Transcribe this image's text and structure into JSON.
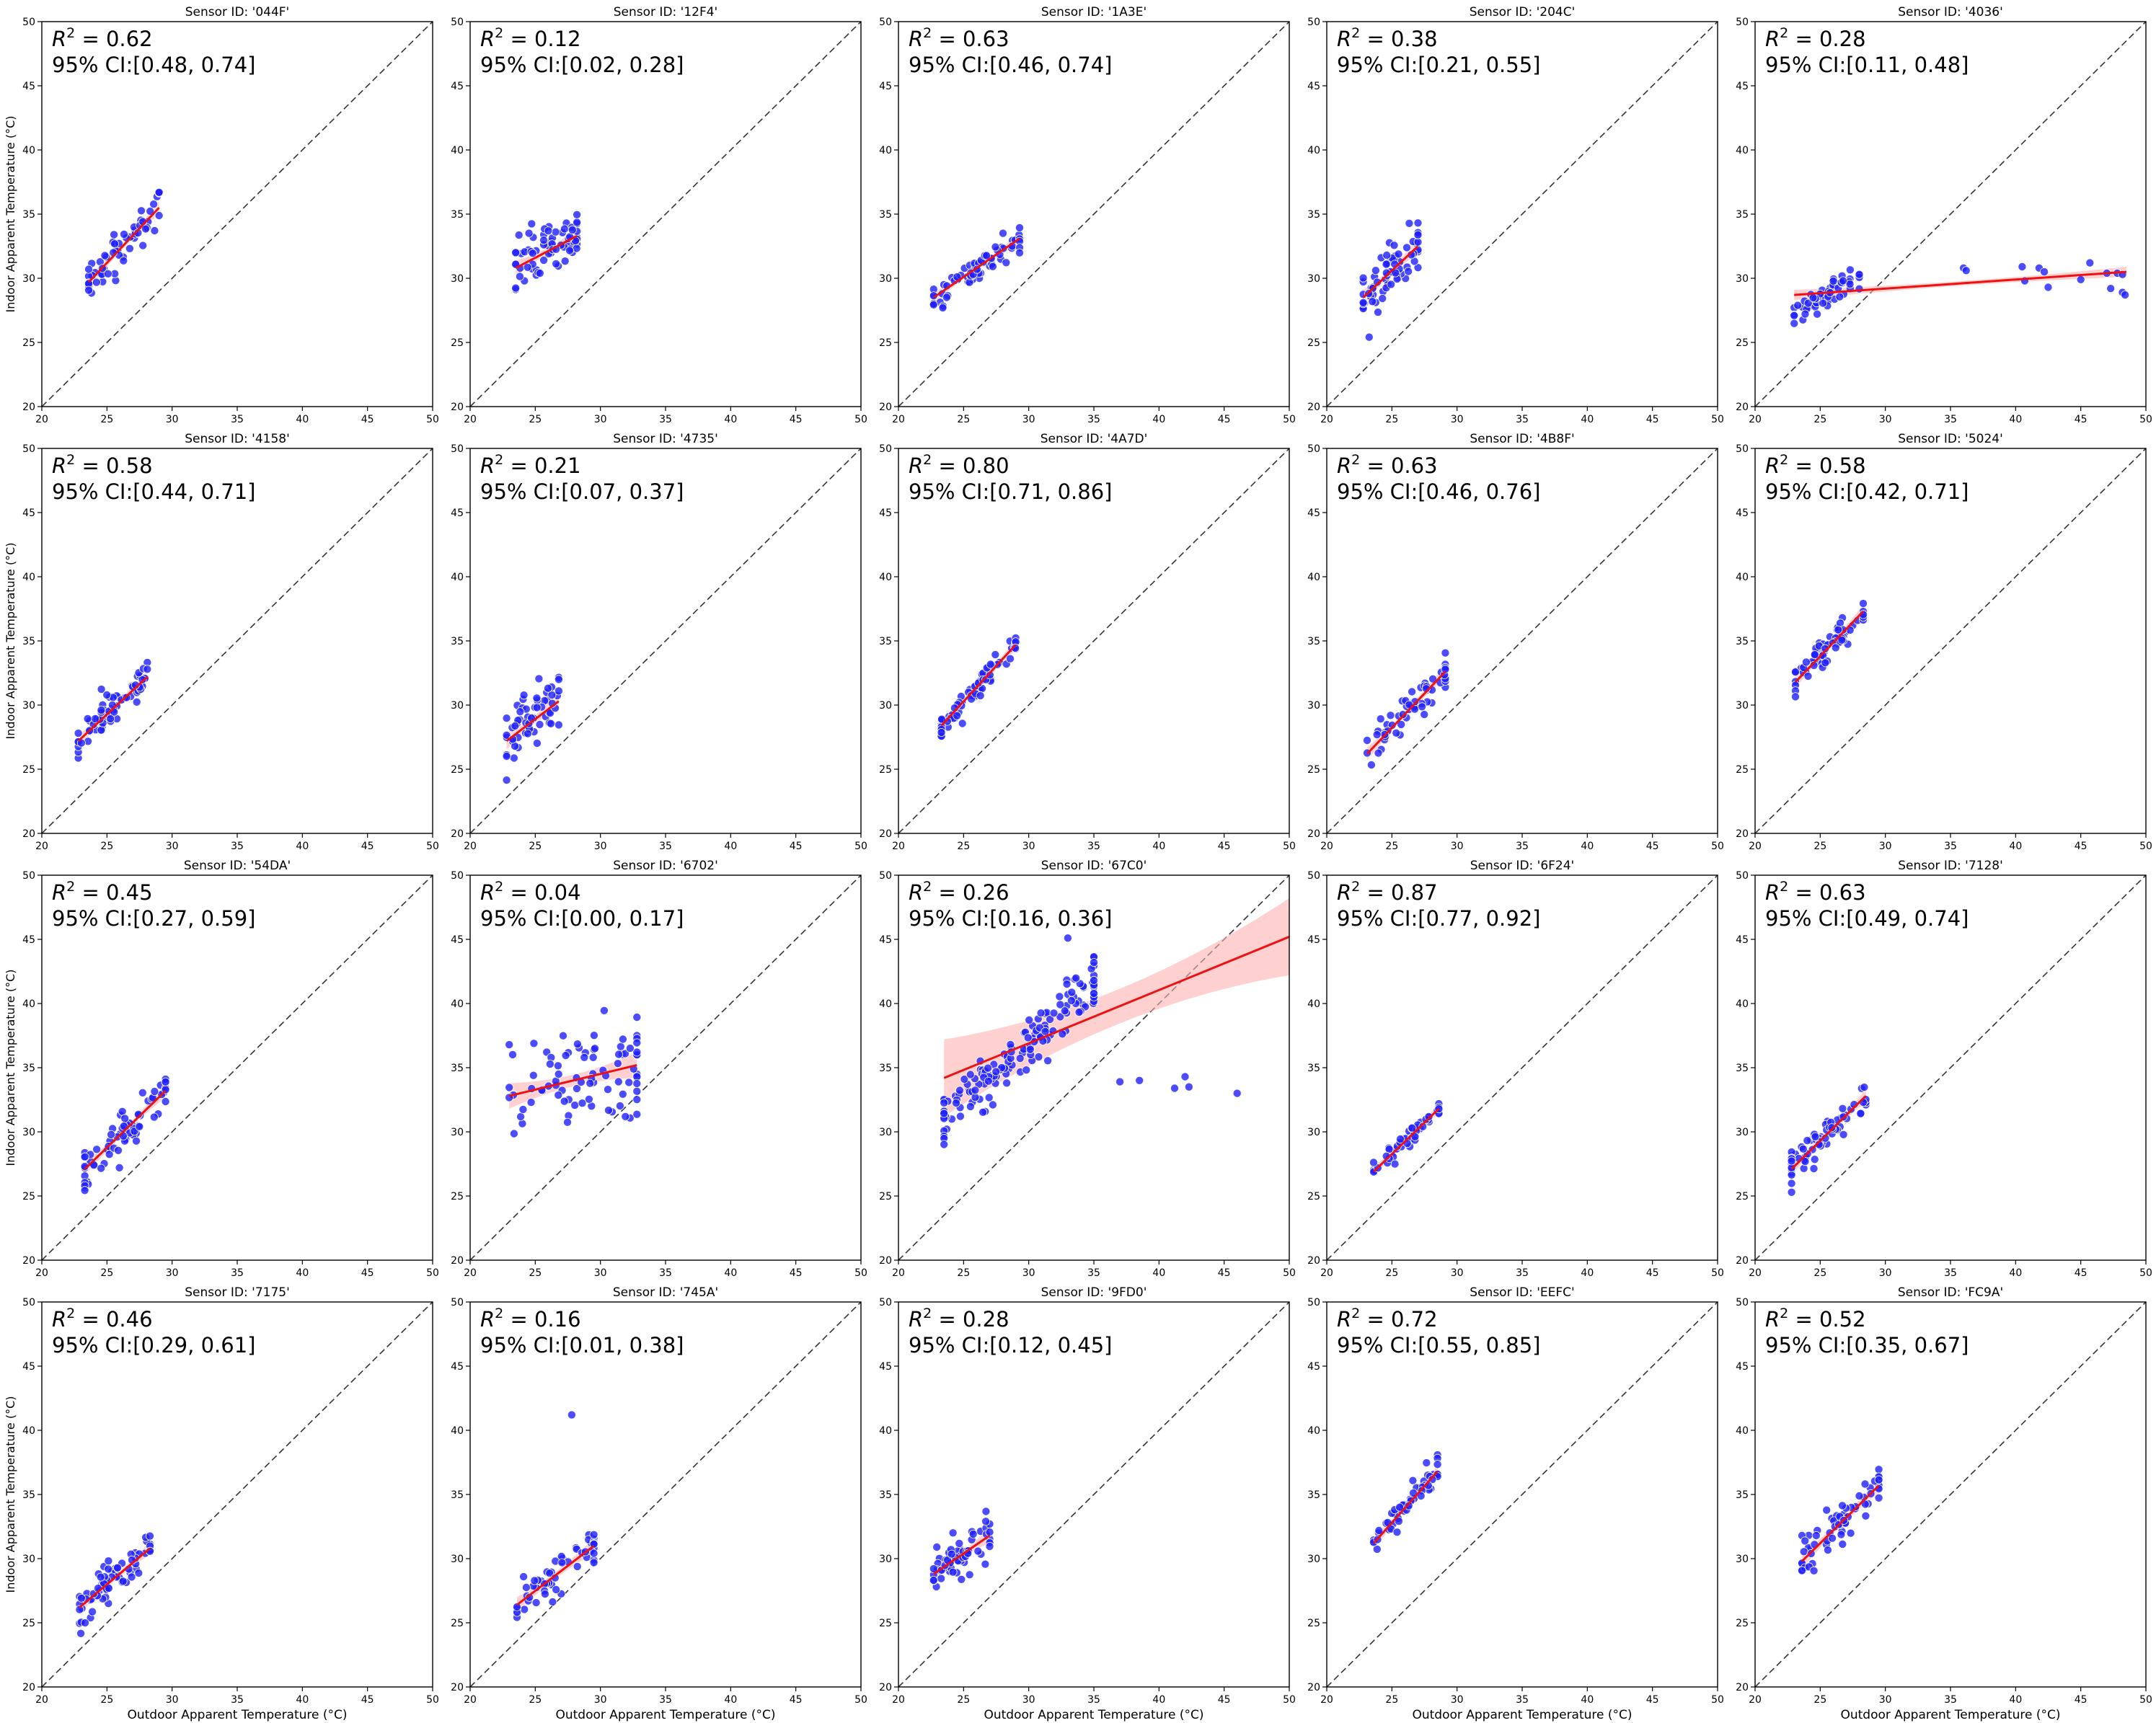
{
  "figure": {
    "xlabel": "Outdoor Apparent Temperature (°C)",
    "ylabel": "Indoor Apparent Temperature (°C)",
    "r2_prefix": "R",
    "r2_sup": "2",
    "ci_prefix": "95% CI:",
    "title_prefix": "Sensor ID: "
  },
  "colors": {
    "points": "#1f1fff",
    "fit_line": "#ee1111",
    "ci_band": "#ffb0b0",
    "identity_line": "#333333"
  },
  "chart_data": [
    {
      "type": "scatter",
      "sensor": "'044F'",
      "title": "Sensor ID: '044F'",
      "r2": "0.62",
      "ci": "[0.48, 0.74]",
      "xlim": [
        20,
        50
      ],
      "ylim": [
        20,
        50
      ],
      "xticks": [
        20,
        25,
        30,
        35,
        40,
        45,
        50
      ],
      "yticks": [
        20,
        25,
        30,
        35,
        40,
        45,
        50
      ],
      "fit": {
        "x": [
          23.6,
          29.0
        ],
        "y": [
          29.7,
          35.5
        ],
        "band": 0.5
      },
      "cluster": {
        "x": [
          23.6,
          29.0
        ],
        "y": [
          29.7,
          35.5
        ],
        "spread": 1.0,
        "n": 60
      }
    },
    {
      "type": "scatter",
      "sensor": "'12F4'",
      "title": "Sensor ID: '12F4'",
      "r2": "0.12",
      "ci": "[0.02, 0.28]",
      "xlim": [
        20,
        50
      ],
      "ylim": [
        20,
        50
      ],
      "xticks": [
        20,
        25,
        30,
        35,
        40,
        45,
        50
      ],
      "yticks": [
        20,
        25,
        30,
        35,
        40,
        45,
        50
      ],
      "fit": {
        "x": [
          23.5,
          28.2
        ],
        "y": [
          30.8,
          33.3
        ],
        "band": 0.6
      },
      "cluster": {
        "x": [
          23.5,
          28.2
        ],
        "y": [
          30.8,
          33.3
        ],
        "spread": 1.4,
        "n": 70
      }
    },
    {
      "type": "scatter",
      "sensor": "'1A3E'",
      "title": "Sensor ID: '1A3E'",
      "r2": "0.63",
      "ci": "[0.46, 0.74]",
      "xlim": [
        20,
        50
      ],
      "ylim": [
        20,
        50
      ],
      "xticks": [
        20,
        25,
        30,
        35,
        40,
        45,
        50
      ],
      "yticks": [
        20,
        25,
        30,
        35,
        40,
        45,
        50
      ],
      "fit": {
        "x": [
          22.7,
          29.3
        ],
        "y": [
          28.5,
          33.1
        ],
        "band": 0.4
      },
      "cluster": {
        "x": [
          22.7,
          29.3
        ],
        "y": [
          28.5,
          33.1
        ],
        "spread": 0.7,
        "n": 70
      }
    },
    {
      "type": "scatter",
      "sensor": "'204C'",
      "title": "Sensor ID: '204C'",
      "r2": "0.38",
      "ci": "[0.21, 0.55]",
      "xlim": [
        20,
        50
      ],
      "ylim": [
        20,
        50
      ],
      "xticks": [
        20,
        25,
        30,
        35,
        40,
        45,
        50
      ],
      "yticks": [
        20,
        25,
        30,
        35,
        40,
        45,
        50
      ],
      "fit": {
        "x": [
          22.8,
          27.0
        ],
        "y": [
          28.5,
          32.5
        ],
        "band": 0.6
      },
      "cluster": {
        "x": [
          22.8,
          27.0
        ],
        "y": [
          28.5,
          32.5
        ],
        "spread": 1.3,
        "n": 70
      }
    },
    {
      "type": "scatter",
      "sensor": "'4036'",
      "title": "Sensor ID: '4036'",
      "r2": "0.28",
      "ci": "[0.11, 0.48]",
      "xlim": [
        20,
        50
      ],
      "ylim": [
        20,
        50
      ],
      "xticks": [
        20,
        25,
        30,
        35,
        40,
        45,
        50
      ],
      "yticks": [
        20,
        25,
        30,
        35,
        40,
        45,
        50
      ],
      "fit": {
        "x": [
          23.0,
          48.5
        ],
        "y": [
          28.7,
          30.5
        ],
        "band": 0.4
      },
      "cluster": {
        "x": [
          23.0,
          28.0
        ],
        "y": [
          27.2,
          30.2
        ],
        "spread": 0.5,
        "n": 55
      },
      "outliers": [
        [
          36.0,
          30.8
        ],
        [
          36.2,
          30.6
        ],
        [
          40.5,
          30.9
        ],
        [
          40.7,
          29.8
        ],
        [
          41.8,
          30.8
        ],
        [
          42.2,
          30.5
        ],
        [
          42.5,
          29.3
        ],
        [
          45.0,
          29.9
        ],
        [
          45.7,
          31.2
        ],
        [
          47.0,
          30.4
        ],
        [
          47.3,
          29.2
        ],
        [
          47.8,
          30.4
        ],
        [
          48.2,
          28.9
        ],
        [
          48.4,
          28.7
        ],
        [
          48.2,
          30.3
        ]
      ]
    },
    {
      "type": "scatter",
      "sensor": "'4158'",
      "title": "Sensor ID: '4158'",
      "r2": "0.58",
      "ci": "[0.44, 0.71]",
      "xlim": [
        20,
        50
      ],
      "ylim": [
        20,
        50
      ],
      "xticks": [
        20,
        25,
        30,
        35,
        40,
        45,
        50
      ],
      "yticks": [
        20,
        25,
        30,
        35,
        40,
        45,
        50
      ],
      "fit": {
        "x": [
          22.8,
          28.1
        ],
        "y": [
          27.2,
          32.2
        ],
        "band": 0.5
      },
      "cluster": {
        "x": [
          22.8,
          28.1
        ],
        "y": [
          27.2,
          32.2
        ],
        "spread": 0.9,
        "n": 70
      }
    },
    {
      "type": "scatter",
      "sensor": "'4735'",
      "title": "Sensor ID: '4735'",
      "r2": "0.21",
      "ci": "[0.07, 0.37]",
      "xlim": [
        20,
        50
      ],
      "ylim": [
        20,
        50
      ],
      "xticks": [
        20,
        25,
        30,
        35,
        40,
        45,
        50
      ],
      "yticks": [
        20,
        25,
        30,
        35,
        40,
        45,
        50
      ],
      "fit": {
        "x": [
          22.8,
          26.8
        ],
        "y": [
          27.2,
          30.3
        ],
        "band": 0.7
      },
      "cluster": {
        "x": [
          22.8,
          26.8
        ],
        "y": [
          27.2,
          30.3
        ],
        "spread": 1.5,
        "n": 60
      }
    },
    {
      "type": "scatter",
      "sensor": "'4A7D'",
      "title": "Sensor ID: '4A7D'",
      "r2": "0.80",
      "ci": "[0.71, 0.86]",
      "xlim": [
        20,
        50
      ],
      "ylim": [
        20,
        50
      ],
      "xticks": [
        20,
        25,
        30,
        35,
        40,
        45,
        50
      ],
      "yticks": [
        20,
        25,
        30,
        35,
        40,
        45,
        50
      ],
      "fit": {
        "x": [
          23.3,
          29.0
        ],
        "y": [
          28.4,
          34.7
        ],
        "band": 0.4
      },
      "cluster": {
        "x": [
          23.3,
          29.0
        ],
        "y": [
          28.4,
          34.7
        ],
        "spread": 0.5,
        "n": 70
      }
    },
    {
      "type": "scatter",
      "sensor": "'4B8F'",
      "title": "Sensor ID: '4B8F'",
      "r2": "0.63",
      "ci": "[0.46, 0.76]",
      "xlim": [
        20,
        50
      ],
      "ylim": [
        20,
        50
      ],
      "xticks": [
        20,
        25,
        30,
        35,
        40,
        45,
        50
      ],
      "yticks": [
        20,
        25,
        30,
        35,
        40,
        45,
        50
      ],
      "fit": {
        "x": [
          23.1,
          29.1
        ],
        "y": [
          26.2,
          32.6
        ],
        "band": 0.5
      },
      "cluster": {
        "x": [
          23.1,
          29.1
        ],
        "y": [
          26.2,
          32.6
        ],
        "spread": 0.9,
        "n": 60
      }
    },
    {
      "type": "scatter",
      "sensor": "'5024'",
      "title": "Sensor ID: '5024'",
      "r2": "0.58",
      "ci": "[0.42, 0.71]",
      "xlim": [
        20,
        50
      ],
      "ylim": [
        20,
        50
      ],
      "xticks": [
        20,
        25,
        30,
        35,
        40,
        45,
        50
      ],
      "yticks": [
        20,
        25,
        30,
        35,
        40,
        45,
        50
      ],
      "fit": {
        "x": [
          23.1,
          28.3
        ],
        "y": [
          31.8,
          37.3
        ],
        "band": 0.5
      },
      "cluster": {
        "x": [
          23.1,
          28.3
        ],
        "y": [
          31.8,
          37.3
        ],
        "spread": 0.9,
        "n": 70
      }
    },
    {
      "type": "scatter",
      "sensor": "'54DA'",
      "title": "Sensor ID: '54DA'",
      "r2": "0.45",
      "ci": "[0.27, 0.59]",
      "xlim": [
        20,
        50
      ],
      "ylim": [
        20,
        50
      ],
      "xticks": [
        20,
        25,
        30,
        35,
        40,
        45,
        50
      ],
      "yticks": [
        20,
        25,
        30,
        35,
        40,
        45,
        50
      ],
      "fit": {
        "x": [
          23.3,
          29.5
        ],
        "y": [
          27.1,
          33.2
        ],
        "band": 0.5
      },
      "cluster": {
        "x": [
          23.3,
          29.5
        ],
        "y": [
          27.1,
          33.2
        ],
        "spread": 1.1,
        "n": 70
      }
    },
    {
      "type": "scatter",
      "sensor": "'6702'",
      "title": "Sensor ID: '6702'",
      "r2": "0.04",
      "ci": "[0.00, 0.17]",
      "xlim": [
        20,
        50
      ],
      "ylim": [
        20,
        50
      ],
      "xticks": [
        20,
        25,
        30,
        35,
        40,
        45,
        50
      ],
      "yticks": [
        20,
        25,
        30,
        35,
        40,
        45,
        50
      ],
      "fit": {
        "x": [
          23.0,
          32.8
        ],
        "y": [
          32.8,
          35.2
        ],
        "band": 1.0
      },
      "cluster": {
        "x": [
          23.0,
          32.8
        ],
        "y": [
          32.8,
          35.2
        ],
        "spread": 2.6,
        "n": 85
      }
    },
    {
      "type": "scatter",
      "sensor": "'67C0'",
      "title": "Sensor ID: '67C0'",
      "r2": "0.26",
      "ci": "[0.16, 0.36]",
      "xlim": [
        20,
        50
      ],
      "ylim": [
        20,
        50
      ],
      "xticks": [
        20,
        25,
        30,
        35,
        40,
        45,
        50
      ],
      "yticks": [
        20,
        25,
        30,
        35,
        40,
        45,
        50
      ],
      "fit": {
        "x": [
          23.5,
          50.0
        ],
        "y": [
          34.2,
          45.2
        ],
        "band": 3.0
      },
      "cluster": {
        "x": [
          23.5,
          35.0
        ],
        "y": [
          31.0,
          41.5
        ],
        "spread": 1.3,
        "n": 160
      },
      "outliers": [
        [
          37.0,
          33.9
        ],
        [
          38.5,
          34.0
        ],
        [
          41.2,
          33.4
        ],
        [
          42.0,
          34.3
        ],
        [
          42.3,
          33.5
        ],
        [
          46.0,
          33.0
        ],
        [
          33.0,
          45.1
        ]
      ]
    },
    {
      "type": "scatter",
      "sensor": "'6F24'",
      "title": "Sensor ID: '6F24'",
      "r2": "0.87",
      "ci": "[0.77, 0.92]",
      "xlim": [
        20,
        50
      ],
      "ylim": [
        20,
        50
      ],
      "xticks": [
        20,
        25,
        30,
        35,
        40,
        45,
        50
      ],
      "yticks": [
        20,
        25,
        30,
        35,
        40,
        45,
        50
      ],
      "fit": {
        "x": [
          23.6,
          28.6
        ],
        "y": [
          26.9,
          31.8
        ],
        "band": 0.4
      },
      "cluster": {
        "x": [
          23.6,
          28.6
        ],
        "y": [
          26.9,
          31.8
        ],
        "spread": 0.4,
        "n": 55
      }
    },
    {
      "type": "scatter",
      "sensor": "'7128'",
      "title": "Sensor ID: '7128'",
      "r2": "0.63",
      "ci": "[0.49, 0.74]",
      "xlim": [
        20,
        50
      ],
      "ylim": [
        20,
        50
      ],
      "xticks": [
        20,
        25,
        30,
        35,
        40,
        45,
        50
      ],
      "yticks": [
        20,
        25,
        30,
        35,
        40,
        45,
        50
      ],
      "fit": {
        "x": [
          22.8,
          28.5
        ],
        "y": [
          27.1,
          32.8
        ],
        "band": 0.5
      },
      "cluster": {
        "x": [
          22.8,
          28.5
        ],
        "y": [
          27.1,
          32.8
        ],
        "spread": 0.8,
        "n": 70
      }
    },
    {
      "type": "scatter",
      "sensor": "'7175'",
      "title": "Sensor ID: '7175'",
      "r2": "0.46",
      "ci": "[0.29, 0.61]",
      "xlim": [
        20,
        50
      ],
      "ylim": [
        20,
        50
      ],
      "xticks": [
        20,
        25,
        30,
        35,
        40,
        45,
        50
      ],
      "yticks": [
        20,
        25,
        30,
        35,
        40,
        45,
        50
      ],
      "fit": {
        "x": [
          22.9,
          28.3
        ],
        "y": [
          26.2,
          30.8
        ],
        "band": 0.5
      },
      "cluster": {
        "x": [
          22.9,
          28.3
        ],
        "y": [
          26.2,
          30.8
        ],
        "spread": 0.9,
        "n": 70
      }
    },
    {
      "type": "scatter",
      "sensor": "'745A'",
      "title": "Sensor ID: '745A'",
      "r2": "0.16",
      "ci": "[0.01, 0.38]",
      "xlim": [
        20,
        50
      ],
      "ylim": [
        20,
        50
      ],
      "xticks": [
        20,
        25,
        30,
        35,
        40,
        45,
        50
      ],
      "yticks": [
        20,
        25,
        30,
        35,
        40,
        45,
        50
      ],
      "fit": {
        "x": [
          23.6,
          29.5
        ],
        "y": [
          26.4,
          31.0
        ],
        "band": 0.6
      },
      "cluster": {
        "x": [
          23.6,
          29.5
        ],
        "y": [
          26.4,
          31.0
        ],
        "spread": 1.0,
        "n": 55
      },
      "outliers": [
        [
          27.8,
          41.2
        ]
      ]
    },
    {
      "type": "scatter",
      "sensor": "'9FD0'",
      "title": "Sensor ID: '9FD0'",
      "r2": "0.28",
      "ci": "[0.12, 0.45]",
      "xlim": [
        20,
        50
      ],
      "ylim": [
        20,
        50
      ],
      "xticks": [
        20,
        25,
        30,
        35,
        40,
        45,
        50
      ],
      "yticks": [
        20,
        25,
        30,
        35,
        40,
        45,
        50
      ],
      "fit": {
        "x": [
          22.7,
          27.0
        ],
        "y": [
          28.8,
          31.8
        ],
        "band": 0.6
      },
      "cluster": {
        "x": [
          22.7,
          27.0
        ],
        "y": [
          28.8,
          31.8
        ],
        "spread": 1.0,
        "n": 60
      }
    },
    {
      "type": "scatter",
      "sensor": "'EEFC'",
      "title": "Sensor ID: 'EEFC'",
      "r2": "0.72",
      "ci": "[0.55, 0.85]",
      "xlim": [
        20,
        50
      ],
      "ylim": [
        20,
        50
      ],
      "xticks": [
        20,
        25,
        30,
        35,
        40,
        45,
        50
      ],
      "yticks": [
        20,
        25,
        30,
        35,
        40,
        45,
        50
      ],
      "fit": {
        "x": [
          23.6,
          28.5
        ],
        "y": [
          31.2,
          36.8
        ],
        "band": 0.5
      },
      "cluster": {
        "x": [
          23.6,
          28.5
        ],
        "y": [
          31.2,
          36.8
        ],
        "spread": 0.7,
        "n": 55
      }
    },
    {
      "type": "scatter",
      "sensor": "'FC9A'",
      "title": "Sensor ID: 'FC9A'",
      "r2": "0.52",
      "ci": "[0.35, 0.67]",
      "xlim": [
        20,
        50
      ],
      "ylim": [
        20,
        50
      ],
      "xticks": [
        20,
        25,
        30,
        35,
        40,
        45,
        50
      ],
      "yticks": [
        20,
        25,
        30,
        35,
        40,
        45,
        50
      ],
      "fit": {
        "x": [
          23.6,
          29.5
        ],
        "y": [
          29.8,
          35.7
        ],
        "band": 0.6
      },
      "cluster": {
        "x": [
          23.6,
          29.5
        ],
        "y": [
          29.8,
          35.7
        ],
        "spread": 1.0,
        "n": 65
      }
    }
  ]
}
